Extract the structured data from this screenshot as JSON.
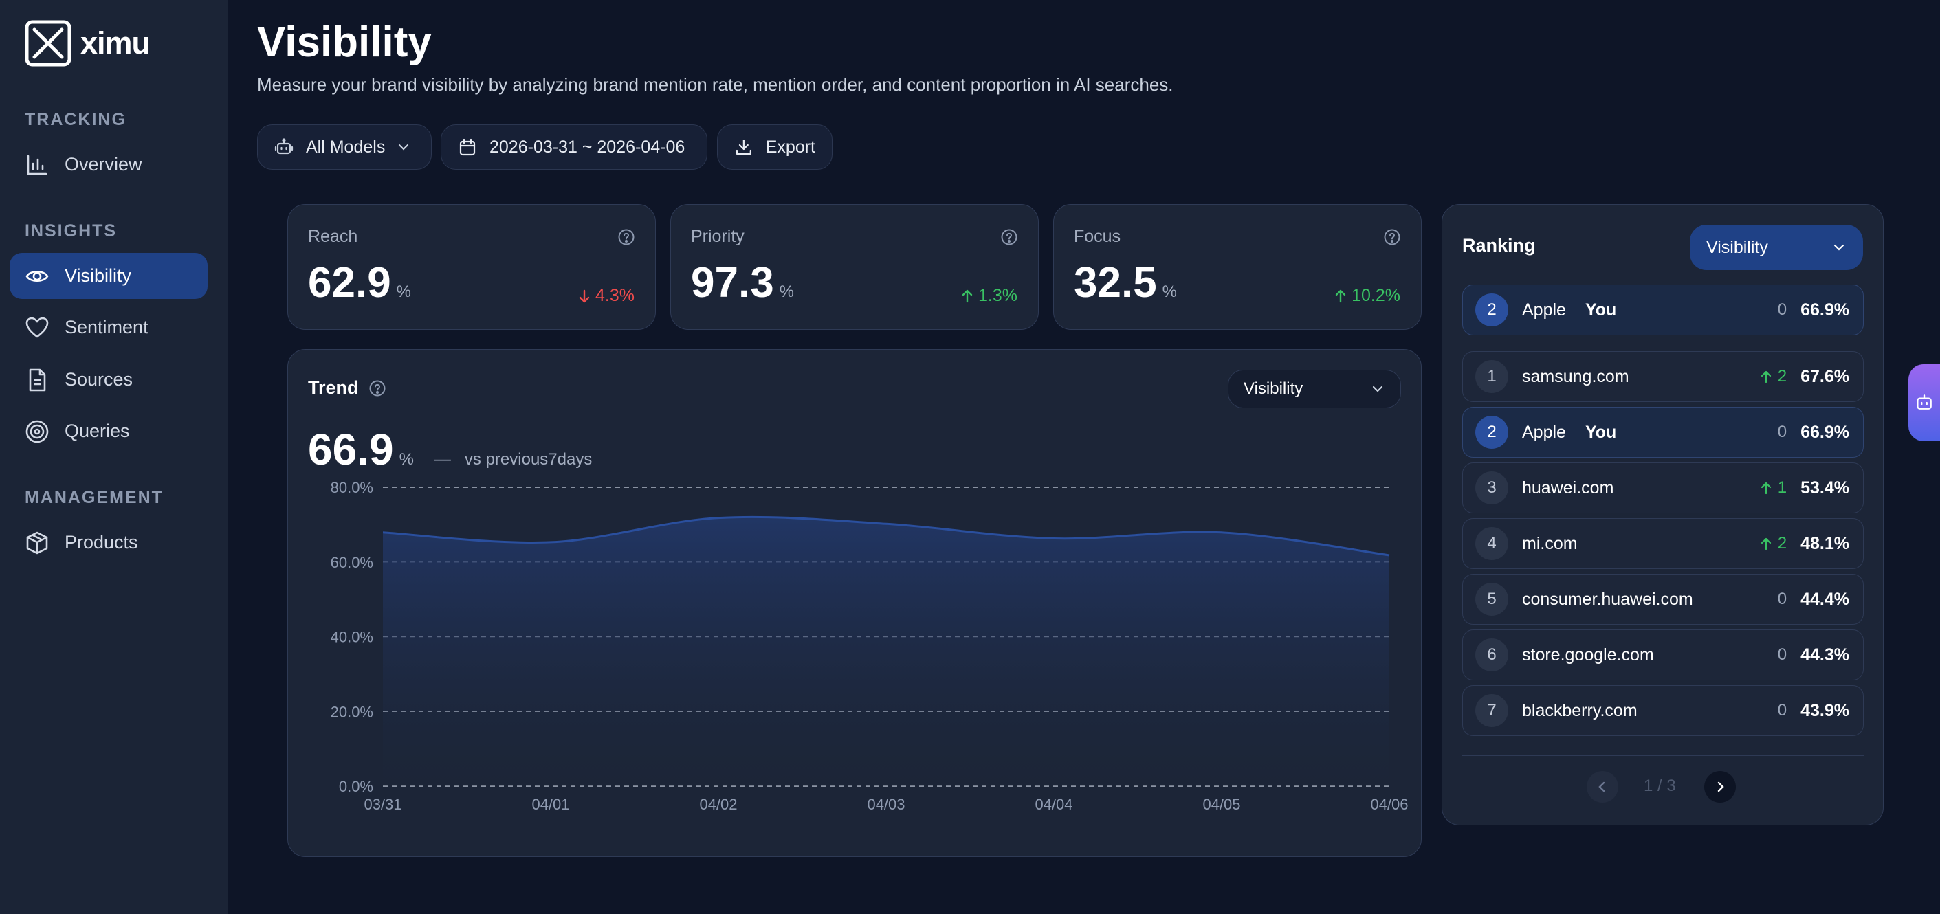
{
  "app": {
    "name": "ximu"
  },
  "sidebar": {
    "sections": [
      {
        "label": "TRACKING",
        "items": [
          {
            "label": "Overview",
            "icon": "bar-chart-icon"
          }
        ]
      },
      {
        "label": "INSIGHTS",
        "items": [
          {
            "label": "Visibility",
            "icon": "eye-icon",
            "active": true
          },
          {
            "label": "Sentiment",
            "icon": "heart-icon"
          },
          {
            "label": "Sources",
            "icon": "document-icon"
          },
          {
            "label": "Queries",
            "icon": "target-icon"
          }
        ]
      },
      {
        "label": "MANAGEMENT",
        "items": [
          {
            "label": "Products",
            "icon": "box-icon"
          }
        ]
      }
    ]
  },
  "header": {
    "title": "Visibility",
    "subtitle": "Measure your brand visibility by analyzing brand mention rate, mention order, and content proportion in AI searches.",
    "model_filter": "All Models",
    "date_range": "2026-03-31 ~ 2026-04-06",
    "export_label": "Export"
  },
  "metrics": [
    {
      "title": "Reach",
      "value": "62.9",
      "unit": "%",
      "change": "4.3%",
      "direction": "down"
    },
    {
      "title": "Priority",
      "value": "97.3",
      "unit": "%",
      "change": "1.3%",
      "direction": "up"
    },
    {
      "title": "Focus",
      "value": "32.5",
      "unit": "%",
      "change": "10.2%",
      "direction": "up"
    }
  ],
  "trend": {
    "title": "Trend",
    "select_value": "Visibility",
    "value": "66.9",
    "unit": "%",
    "compare_dash": "—",
    "compare_label": "vs previous7days"
  },
  "chart_data": {
    "type": "area",
    "x": [
      "03/31",
      "04/01",
      "04/02",
      "04/03",
      "04/04",
      "04/05",
      "04/06"
    ],
    "series": [
      {
        "values": [
          67.9,
          65.3,
          71.8,
          70.2,
          66.3,
          67.9,
          61.8
        ]
      }
    ],
    "ylim": [
      0,
      80
    ],
    "yticks": [
      "0.0%",
      "20.0%",
      "40.0%",
      "60.0%",
      "80.0%"
    ],
    "grid": true,
    "color": "#2a4f9e"
  },
  "ranking": {
    "title": "Ranking",
    "select_value": "Visibility",
    "you_label": "You",
    "pinned": {
      "rank": "2",
      "name": "Apple",
      "delta": "0",
      "value": "66.9%",
      "you": true
    },
    "rows": [
      {
        "rank": "1",
        "name": "samsung.com",
        "delta": "2",
        "delta_dir": "up",
        "value": "67.6%"
      },
      {
        "rank": "2",
        "name": "Apple",
        "delta": "0",
        "delta_dir": "none",
        "value": "66.9%",
        "you": true
      },
      {
        "rank": "3",
        "name": "huawei.com",
        "delta": "1",
        "delta_dir": "up",
        "value": "53.4%"
      },
      {
        "rank": "4",
        "name": "mi.com",
        "delta": "2",
        "delta_dir": "up",
        "value": "48.1%"
      },
      {
        "rank": "5",
        "name": "consumer.huawei.com",
        "delta": "0",
        "delta_dir": "none",
        "value": "44.4%"
      },
      {
        "rank": "6",
        "name": "store.google.com",
        "delta": "0",
        "delta_dir": "none",
        "value": "44.3%"
      },
      {
        "rank": "7",
        "name": "blackberry.com",
        "delta": "0",
        "delta_dir": "none",
        "value": "43.9%"
      }
    ],
    "pagination": "1 / 3"
  },
  "colors": {
    "accent": "#1f4186",
    "up": "#39c163",
    "down": "#ef4c4c",
    "background": "#0e1527"
  }
}
